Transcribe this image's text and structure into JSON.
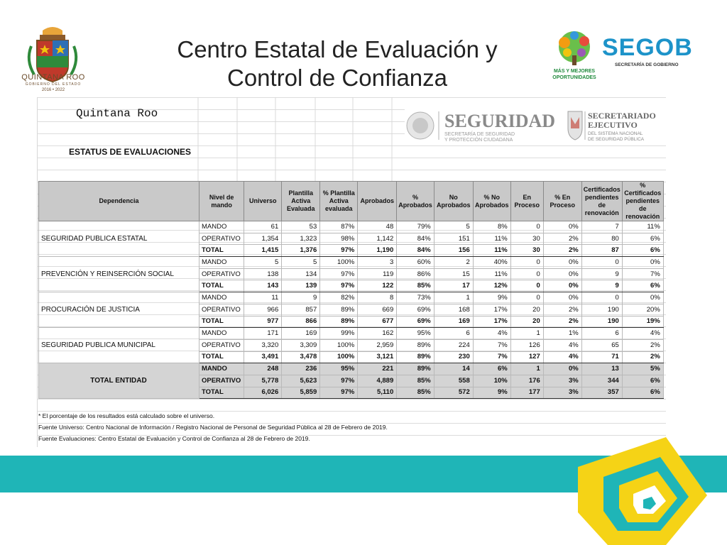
{
  "title_line1": "Centro Estatal de Evaluación y",
  "title_line2": "Control de Confianza",
  "logo_left": {
    "name": "QUINTANA ROO",
    "subtitle": "GOBIERNO DEL ESTADO",
    "years": "2016 • 2022"
  },
  "logo_right": {
    "slogan_line1": "MÁS Y MEJORES",
    "slogan_line2": "OPORTUNIDADES",
    "name": "SEGOB",
    "subtitle": "SECRETARÍA DE GOBIERNO"
  },
  "sheet": {
    "heading": "Quintana Roo",
    "section_title": "ESTATUS DE EVALUACIONES",
    "seguridad_logo": {
      "name": "SEGURIDAD",
      "line1": "SECRETARÍA DE SEGURIDAD",
      "line2": "Y PROTECCIÓN CIUDADANA"
    },
    "secretariado_logo": {
      "line1": "SECRETARIADO",
      "line2": "EJECUTIVO",
      "line3": "DEL SISTEMA NACIONAL",
      "line4": "DE SEGURIDAD PÚBLICA"
    }
  },
  "chart_data": {
    "type": "table",
    "title": "ESTATUS DE EVALUACIONES",
    "columns": [
      "Dependencia",
      "Nivel de mando",
      "Universo",
      "Plantilla Activa Evaluada",
      "% Plantilla Activa evaluada",
      "Aprobados",
      "% Aprobados",
      "No Aprobados",
      "% No Aprobados",
      "En Proceso",
      "% En Proceso",
      "Certificados pendientes de renovación",
      "% Certificados pendientes de renovación"
    ],
    "groups": [
      {
        "dependencia": "SEGURIDAD PUBLICA ESTATAL",
        "rows": [
          [
            "MANDO",
            "61",
            "53",
            "87%",
            "48",
            "79%",
            "5",
            "8%",
            "0",
            "0%",
            "7",
            "11%"
          ],
          [
            "OPERATIVO",
            "1,354",
            "1,323",
            "98%",
            "1,142",
            "84%",
            "151",
            "11%",
            "30",
            "2%",
            "80",
            "6%"
          ],
          [
            "TOTAL",
            "1,415",
            "1,376",
            "97%",
            "1,190",
            "84%",
            "156",
            "11%",
            "30",
            "2%",
            "87",
            "6%"
          ]
        ]
      },
      {
        "dependencia": "PREVENCIÓN Y REINSERCIÓN SOCIAL",
        "rows": [
          [
            "MANDO",
            "5",
            "5",
            "100%",
            "3",
            "60%",
            "2",
            "40%",
            "0",
            "0%",
            "0",
            "0%"
          ],
          [
            "OPERATIVO",
            "138",
            "134",
            "97%",
            "119",
            "86%",
            "15",
            "11%",
            "0",
            "0%",
            "9",
            "7%"
          ],
          [
            "TOTAL",
            "143",
            "139",
            "97%",
            "122",
            "85%",
            "17",
            "12%",
            "0",
            "0%",
            "9",
            "6%"
          ]
        ]
      },
      {
        "dependencia": "PROCURACIÓN DE JUSTICIA",
        "rows": [
          [
            "MANDO",
            "11",
            "9",
            "82%",
            "8",
            "73%",
            "1",
            "9%",
            "0",
            "0%",
            "0",
            "0%"
          ],
          [
            "OPERATIVO",
            "966",
            "857",
            "89%",
            "669",
            "69%",
            "168",
            "17%",
            "20",
            "2%",
            "190",
            "20%"
          ],
          [
            "TOTAL",
            "977",
            "866",
            "89%",
            "677",
            "69%",
            "169",
            "17%",
            "20",
            "2%",
            "190",
            "19%"
          ]
        ]
      },
      {
        "dependencia": "SEGURIDAD PUBLICA MUNICIPAL",
        "rows": [
          [
            "MANDO",
            "171",
            "169",
            "99%",
            "162",
            "95%",
            "6",
            "4%",
            "1",
            "1%",
            "6",
            "4%"
          ],
          [
            "OPERATIVO",
            "3,320",
            "3,309",
            "100%",
            "2,959",
            "89%",
            "224",
            "7%",
            "126",
            "4%",
            "65",
            "2%"
          ],
          [
            "TOTAL",
            "3,491",
            "3,478",
            "100%",
            "3,121",
            "89%",
            "230",
            "7%",
            "127",
            "4%",
            "71",
            "2%"
          ]
        ]
      },
      {
        "dependencia": "TOTAL ENTIDAD",
        "rows": [
          [
            "MANDO",
            "248",
            "236",
            "95%",
            "221",
            "89%",
            "14",
            "6%",
            "1",
            "0%",
            "13",
            "5%"
          ],
          [
            "OPERATIVO",
            "5,778",
            "5,623",
            "97%",
            "4,889",
            "85%",
            "558",
            "10%",
            "176",
            "3%",
            "344",
            "6%"
          ],
          [
            "TOTAL",
            "6,026",
            "5,859",
            "97%",
            "5,110",
            "85%",
            "572",
            "9%",
            "177",
            "3%",
            "357",
            "6%"
          ]
        ]
      }
    ]
  },
  "notes": [
    "* El porcentaje de los resultados está calculado sobre el universo.",
    "Fuente Universo: Centro Nacional de Información / Registro Nacional de Personal de Seguridad Pública al 28 de Febrero de 2019.",
    "Fuente Evaluaciones: Centro Estatal de Evaluación y Control de Confianza al 28 de Febrero de 2019."
  ],
  "colors": {
    "band": "#1fb5b7",
    "corner_yellow": "#f5d316",
    "corner_teal": "#1fb5b7",
    "segob_blue": "#1d93c9",
    "tree_green": "#1f8a3c",
    "header_gray": "#c9c9c9"
  }
}
